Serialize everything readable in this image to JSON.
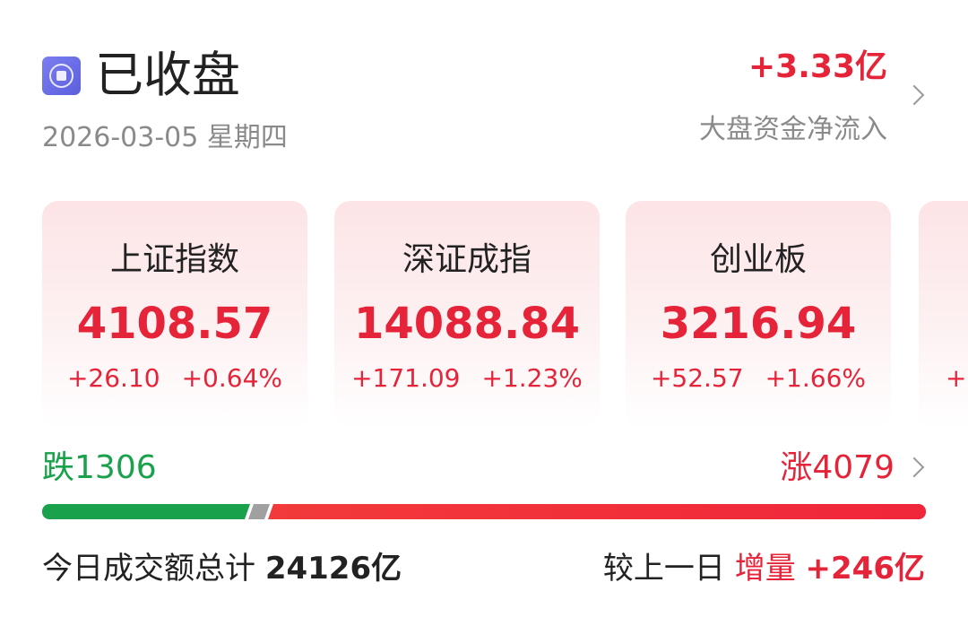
{
  "header": {
    "status_icon": "stop-circle-icon",
    "title": "已收盘",
    "date": "2026-03-05 星期四",
    "net_inflow": "+3.33亿",
    "net_inflow_label": "大盘资金净流入"
  },
  "indices": [
    {
      "name": "上证指数",
      "value": "4108.57",
      "change": "+26.10",
      "percent": "+0.64%"
    },
    {
      "name": "深证成指",
      "value": "14088.84",
      "change": "+171.09",
      "percent": "+1.23%"
    },
    {
      "name": "创业板",
      "value": "3216.94",
      "change": "+52.57",
      "percent": "+1.66%"
    },
    {
      "name": "",
      "value": "",
      "change": "+",
      "percent": ""
    }
  ],
  "breadth": {
    "down_label": "跌",
    "down": "1306",
    "up_label": "涨",
    "up": "4079",
    "down_color": "#1aa14b",
    "up_color": "#e5243a",
    "flat_color": "#a0a0a0"
  },
  "turnover": {
    "label": "今日成交额总计",
    "value": "24126亿",
    "compare_label": "较上一日",
    "change_type": "增量",
    "change": "+246亿"
  },
  "colors": {
    "accent_red": "#e5243a",
    "accent_green": "#1aa14b"
  }
}
